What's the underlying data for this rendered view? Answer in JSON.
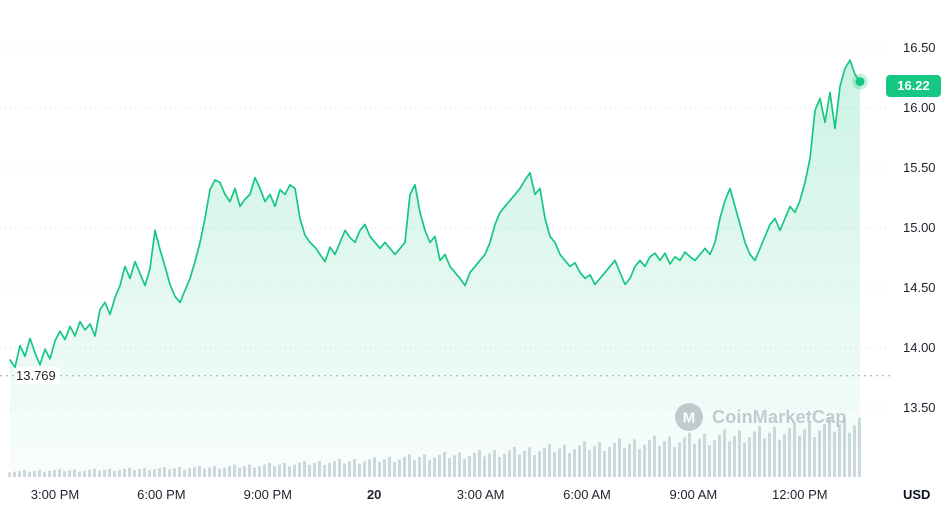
{
  "watermark": {
    "text": "CoinMarketCap",
    "logo_letter": "M"
  },
  "chart_data": {
    "type": "line",
    "title": "",
    "currency": "USD",
    "current_price": 16.22,
    "current_price_label": "16.22",
    "low_value": 13.769,
    "low_label": "13.769",
    "y_ticks": [
      "16.50",
      "16.00",
      "15.50",
      "15.00",
      "14.50",
      "14.00",
      "13.50"
    ],
    "y_tick_values": [
      16.5,
      16.0,
      15.5,
      15.0,
      14.5,
      14.0,
      13.5
    ],
    "ylim": [
      13.4,
      16.6
    ],
    "x_ticks": [
      "3:00 PM",
      "6:00 PM",
      "9:00 PM",
      "20",
      "3:00 AM",
      "6:00 AM",
      "9:00 AM",
      "12:00 PM"
    ],
    "x_bold_tick": "20",
    "grid": true,
    "legend": false,
    "prices": [
      13.9,
      13.84,
      14.02,
      13.93,
      14.08,
      13.96,
      13.86,
      13.99,
      13.91,
      14.06,
      14.14,
      14.07,
      14.18,
      14.1,
      14.22,
      14.15,
      14.2,
      14.1,
      14.32,
      14.38,
      14.28,
      14.42,
      14.52,
      14.68,
      14.58,
      14.72,
      14.62,
      14.52,
      14.66,
      14.98,
      14.82,
      14.68,
      14.53,
      14.43,
      14.38,
      14.48,
      14.58,
      14.72,
      14.88,
      15.08,
      15.32,
      15.4,
      15.38,
      15.28,
      15.22,
      15.33,
      15.18,
      15.24,
      15.28,
      15.42,
      15.33,
      15.22,
      15.28,
      15.18,
      15.32,
      15.28,
      15.36,
      15.33,
      15.08,
      14.94,
      14.88,
      14.84,
      14.78,
      14.72,
      14.84,
      14.78,
      14.88,
      14.98,
      14.92,
      14.88,
      14.98,
      15.03,
      14.93,
      14.88,
      14.83,
      14.88,
      14.83,
      14.78,
      14.83,
      14.88,
      15.28,
      15.36,
      15.13,
      14.98,
      14.88,
      14.93,
      14.73,
      14.78,
      14.68,
      14.63,
      14.58,
      14.52,
      14.63,
      14.68,
      14.73,
      14.78,
      14.88,
      15.03,
      15.13,
      15.18,
      15.23,
      15.28,
      15.33,
      15.4,
      15.46,
      15.28,
      15.33,
      15.08,
      14.93,
      14.88,
      14.78,
      14.73,
      14.68,
      14.71,
      14.63,
      14.58,
      14.61,
      14.53,
      14.58,
      14.63,
      14.68,
      14.73,
      14.63,
      14.53,
      14.58,
      14.68,
      14.73,
      14.68,
      14.76,
      14.79,
      14.73,
      14.79,
      14.7,
      14.76,
      14.73,
      14.8,
      14.76,
      14.73,
      14.78,
      14.83,
      14.78,
      14.88,
      15.08,
      15.23,
      15.33,
      15.18,
      15.03,
      14.88,
      14.78,
      14.73,
      14.83,
      14.93,
      15.03,
      15.08,
      14.98,
      15.08,
      15.18,
      15.13,
      15.23,
      15.38,
      15.58,
      15.98,
      16.08,
      15.88,
      16.13,
      15.83,
      16.18,
      16.33,
      16.4,
      16.28,
      16.22
    ],
    "volume_profile": [
      0.1,
      0.11,
      0.12,
      0.12,
      0.13,
      0.14,
      0.15,
      0.16,
      0.17,
      0.18,
      0.2,
      0.22,
      0.24,
      0.26,
      0.28,
      0.3,
      0.33,
      0.36,
      0.38,
      0.4,
      0.43,
      0.46,
      0.49,
      0.52,
      0.55,
      0.58,
      0.61,
      0.64,
      0.67,
      0.7,
      0.74,
      0.78,
      0.82,
      0.86,
      0.92,
      1.0
    ],
    "colors": {
      "line": "#16c784",
      "fill": "#16c784",
      "badge": "#16c784",
      "grid": "#d6dbe3",
      "low_line": "#9aa4b2",
      "volume": "#d2d7dd",
      "axis_text": "#222531",
      "currency_text": "#0d1421",
      "watermark": "#b2bac4"
    }
  }
}
